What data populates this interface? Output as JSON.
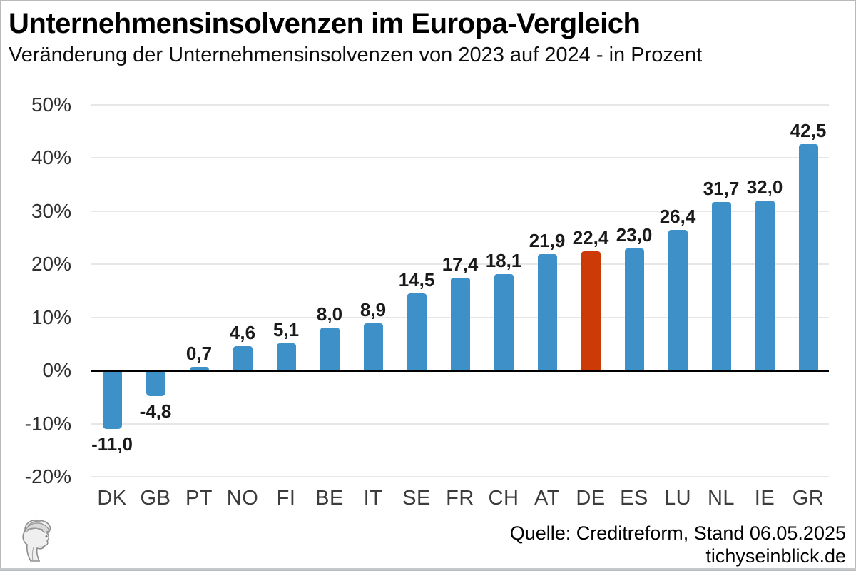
{
  "header": {
    "title": "Unternehmensinsolvenzen im Europa-Vergleich",
    "subtitle": "Veränderung der Unternehmensinsolvenzen von 2023 auf 2024 - in Prozent"
  },
  "chart_data": {
    "type": "bar",
    "categories": [
      "DK",
      "GB",
      "PT",
      "NO",
      "FI",
      "BE",
      "IT",
      "SE",
      "FR",
      "CH",
      "AT",
      "DE",
      "ES",
      "LU",
      "NL",
      "IE",
      "GR"
    ],
    "values": [
      -11.0,
      -4.8,
      0.7,
      4.6,
      5.1,
      8.0,
      8.9,
      14.5,
      17.4,
      18.1,
      21.9,
      22.4,
      23.0,
      26.4,
      31.7,
      32.0,
      42.5
    ],
    "value_labels": [
      "-11,0",
      "-4,8",
      "0,7",
      "4,6",
      "5,1",
      "8,0",
      "8,9",
      "14,5",
      "17,4",
      "18,1",
      "21,9",
      "22,4",
      "23,0",
      "26,4",
      "31,7",
      "32,0",
      "42,5"
    ],
    "highlight_category": "DE",
    "highlight_index": 11,
    "title": "Unternehmensinsolvenzen im Europa-Vergleich",
    "xlabel": "",
    "ylabel": "",
    "ylim": [
      -20,
      50
    ],
    "yticks": [
      {
        "value": 50,
        "label": "50%"
      },
      {
        "value": 40,
        "label": "40%"
      },
      {
        "value": 30,
        "label": "30%"
      },
      {
        "value": 20,
        "label": "20%"
      },
      {
        "value": 10,
        "label": "10%"
      },
      {
        "value": 0,
        "label": "0%"
      },
      {
        "value": -10,
        "label": "-10%"
      },
      {
        "value": -20,
        "label": "-20%"
      }
    ],
    "grid": "horizontal",
    "legend": "none",
    "colors": {
      "bar": "#3e90c9",
      "highlight": "#cc3b06",
      "gridline": "#e7e7e7",
      "zero_line": "#000000"
    }
  },
  "footer": {
    "source": "Quelle: Creditreform, Stand 06.05.2025",
    "site": "tichyseinblick.de"
  }
}
